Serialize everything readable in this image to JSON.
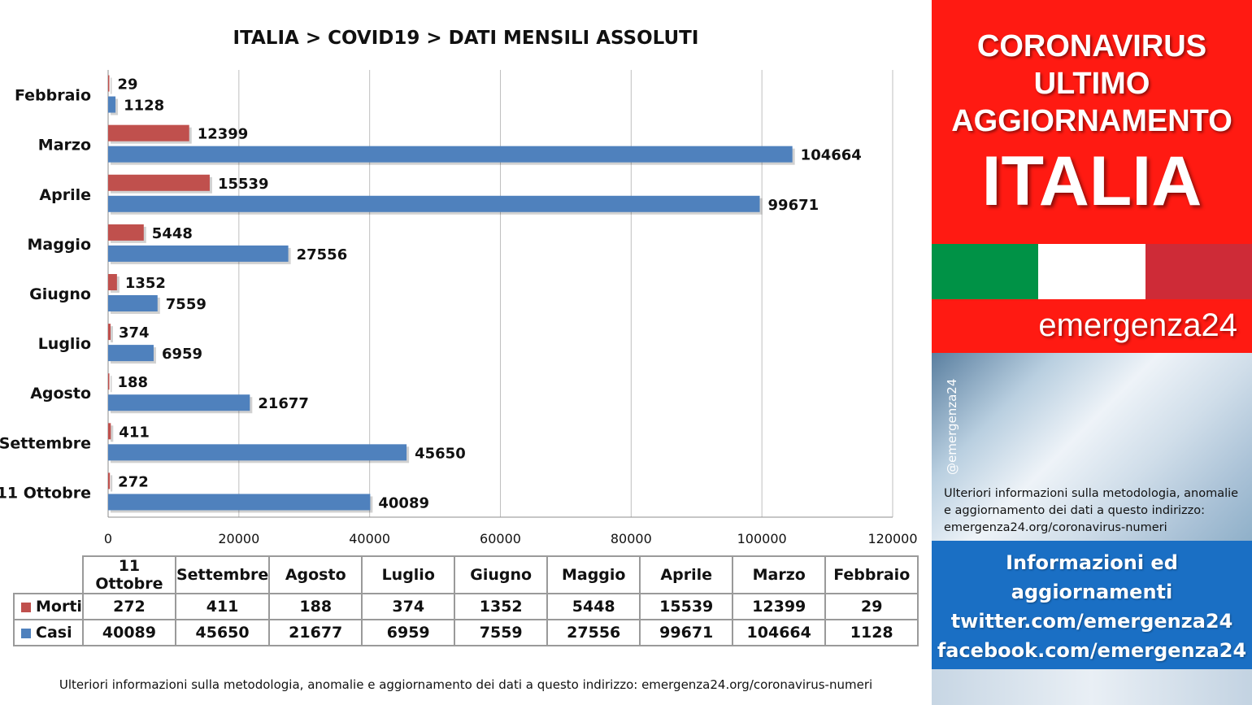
{
  "chart_data": {
    "type": "bar",
    "orientation": "horizontal",
    "title": "ITALIA >  COVID19 > DATI MENSILI  ASSOLUTI",
    "categories": [
      "Febbraio",
      "Marzo",
      "Aprile",
      "Maggio",
      "Giugno",
      "Luglio",
      "Agosto",
      "Settembre",
      "11 Ottobre"
    ],
    "series": [
      {
        "name": "Morti",
        "color": "#c0504d",
        "values": [
          29,
          12399,
          15539,
          5448,
          1352,
          374,
          188,
          411,
          272
        ]
      },
      {
        "name": "Casi",
        "color": "#4f81bd",
        "values": [
          1128,
          104664,
          99671,
          27556,
          7559,
          6959,
          21677,
          45650,
          40089
        ]
      }
    ],
    "xlim": [
      0,
      120000
    ],
    "x_ticks": [
      "0",
      "20000",
      "40000",
      "60000",
      "80000",
      "100000",
      "120000"
    ],
    "grid": "vertical",
    "data_labels": true,
    "data_table": {
      "columns": [
        "11 Ottobre",
        "Settembre",
        "Agosto",
        "Luglio",
        "Giugno",
        "Maggio",
        "Aprile",
        "Marzo",
        "Febbraio"
      ],
      "rows": [
        {
          "name": "Morti",
          "values": [
            "272",
            "411",
            "188",
            "374",
            "1352",
            "5448",
            "15539",
            "12399",
            "29"
          ]
        },
        {
          "name": "Casi",
          "values": [
            "40089",
            "45650",
            "21677",
            "6959",
            "7559",
            "27556",
            "99671",
            "104664",
            "1128"
          ]
        }
      ]
    }
  },
  "footer_note": "Ulteriori informazioni sulla metodologia, anomalie e aggiornamento dei dati a questo indirizzo: emergenza24.org/coronavirus-numeri",
  "sidebar": {
    "headline_lines": [
      "CORONAVIRUS",
      "ULTIMO",
      "AGGIORNAMENTO"
    ],
    "country": "ITALIA",
    "flag_colors": [
      "#009246",
      "#ffffff",
      "#ce2b37"
    ],
    "brand": "emergenza24",
    "handle": "@emergenza24",
    "note_lines": [
      "Ulteriori informazioni sulla metodologia, anomalie",
      "e aggiornamento dei dati a questo indirizzo:",
      "emergenza24.org/coronavirus-numeri"
    ],
    "social_lines": [
      "Informazioni ed",
      "aggiornamenti",
      "twitter.com/emergenza24",
      "facebook.com/emergenza24"
    ]
  },
  "colors": {
    "red_panel": "#ff1a12",
    "blue_panel": "#1a6fc4",
    "morti": "#c0504d",
    "casi": "#4f81bd"
  }
}
